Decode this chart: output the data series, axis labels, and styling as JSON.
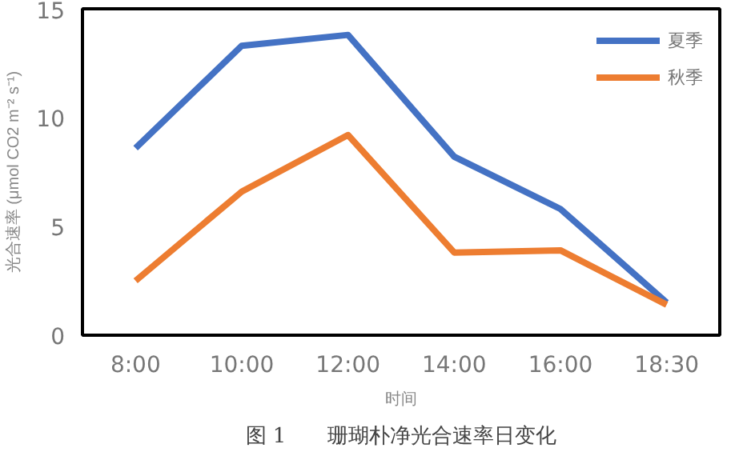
{
  "chart_data": {
    "type": "line",
    "title": "图 1　　珊瑚朴净光合速率日变化",
    "xlabel": "时间",
    "ylabel": "光合速率 (μmol CO2 m⁻² s⁻¹)",
    "categories": [
      "8:00",
      "10:00",
      "12:00",
      "14:00",
      "16:00",
      "18:30"
    ],
    "series": [
      {
        "name": "夏季",
        "color": "#4472c4",
        "values": [
          8.6,
          13.3,
          13.8,
          8.2,
          5.8,
          1.5
        ]
      },
      {
        "name": "秋季",
        "color": "#ed7d31",
        "values": [
          2.5,
          6.6,
          9.2,
          3.8,
          3.9,
          1.4
        ]
      }
    ],
    "ylim": [
      0,
      15
    ],
    "yticks": [
      0,
      5,
      10,
      15
    ],
    "grid": false,
    "legend": "top right",
    "marker": "none",
    "line_style": "solid"
  }
}
